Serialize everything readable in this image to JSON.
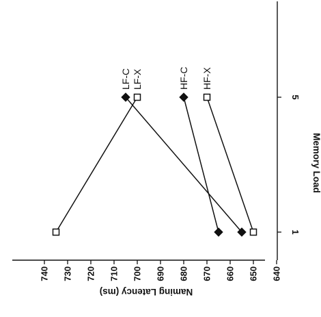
{
  "chart_data": {
    "type": "line",
    "orientation": "rotated-90-clockwise",
    "x": [
      "1",
      "5"
    ],
    "xlabel": "Memory Load",
    "ylabel": "Naming Latency (ms)",
    "ylim": [
      630,
      740
    ],
    "yticks": [
      640,
      650,
      660,
      670,
      680,
      690,
      700,
      710,
      720,
      730,
      740
    ],
    "series": [
      {
        "name": "LF-C",
        "marker": "filled-diamond",
        "values": [
          655,
          705
        ]
      },
      {
        "name": "LF-X",
        "marker": "open-square",
        "values": [
          735,
          700
        ]
      },
      {
        "name": "HF-C",
        "marker": "filled-diamond",
        "values": [
          665,
          680
        ]
      },
      {
        "name": "HF-X",
        "marker": "open-square",
        "values": [
          650,
          670
        ]
      }
    ]
  }
}
